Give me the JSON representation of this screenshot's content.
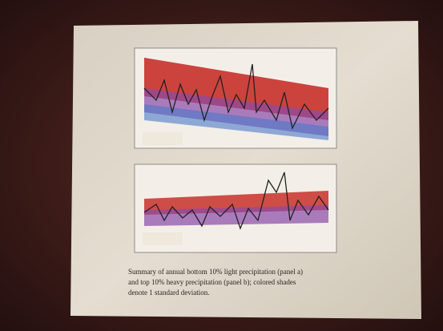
{
  "slide": {
    "caption": {
      "lines": [
        "Summary of annual bottom 10% light precipitation (panel a)",
        "and top 10% heavy precipitation (panel b); colored shades",
        "denote 1 standard deviation."
      ]
    }
  }
}
